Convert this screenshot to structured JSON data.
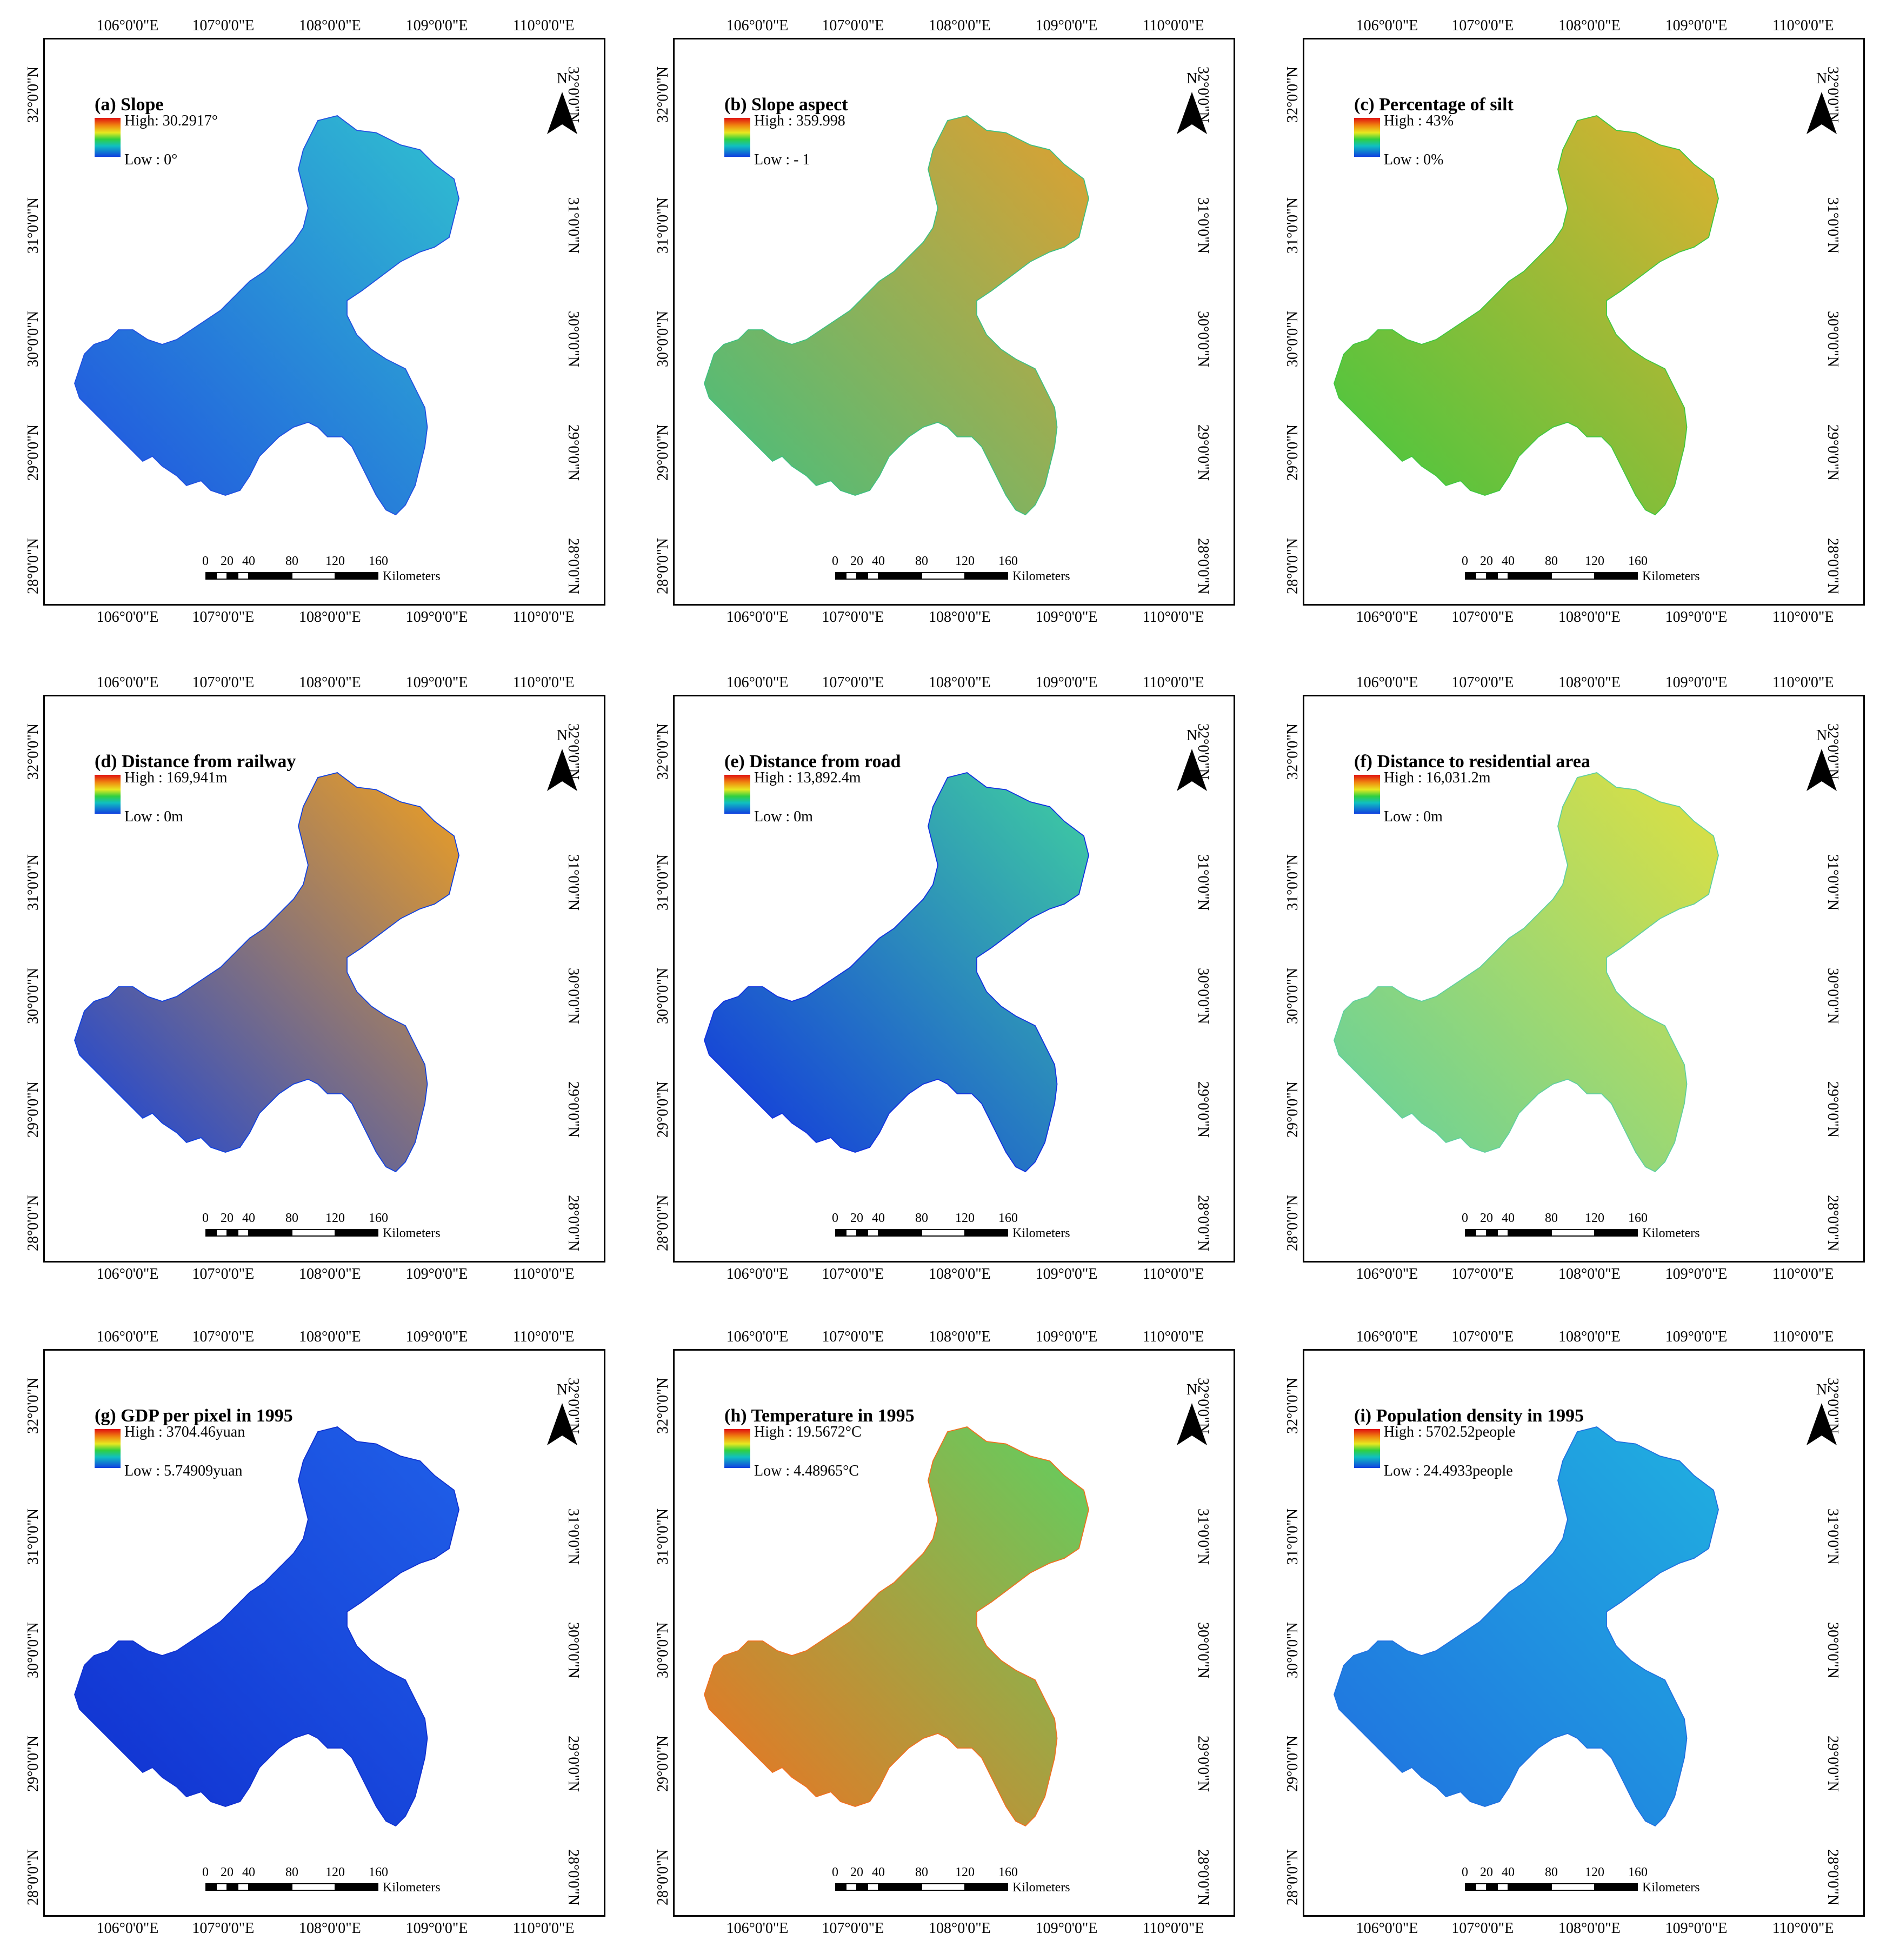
{
  "axes": {
    "lon_labels": [
      "106°0'0\"E",
      "107°0'0\"E",
      "108°0'0\"E",
      "109°0'0\"E",
      "110°0'0\"E"
    ],
    "lat_labels": [
      "32°0'0\"N",
      "31°0'0\"N",
      "30°0'0\"N",
      "29°0'0\"N",
      "28°0'0\"N"
    ]
  },
  "common": {
    "north_letter": "N",
    "scale_numbers": [
      "0",
      "20",
      "40",
      "80",
      "120",
      "160"
    ],
    "scale_unit": "Kilometers"
  },
  "panels": [
    {
      "title": "(a) Slope",
      "high": "High: 30.2917°",
      "low": "Low : 0°",
      "style": "slope"
    },
    {
      "title": "(b) Slope aspect",
      "high": "High : 359.998",
      "low": "Low :  - 1",
      "style": "aspect"
    },
    {
      "title": "(c) Percentage of silt",
      "high": "High : 43%",
      "low": "Low : 0%",
      "style": "silt"
    },
    {
      "title": "(d) Distance from railway",
      "high": "High : 169,941m",
      "low": "Low : 0m",
      "style": "railway"
    },
    {
      "title": "(e) Distance from road",
      "high": "High : 13,892.4m",
      "low": "Low : 0m",
      "style": "road"
    },
    {
      "title": "(f) Distance to residential area",
      "high": "High : 16,031.2m",
      "low": "Low : 0m",
      "style": "residential"
    },
    {
      "title": "(g) GDP per pixel in 1995",
      "high": "High : 3704.46yuan",
      "low": "Low : 5.74909yuan",
      "style": "gdp"
    },
    {
      "title": "(h) Temperature in 1995",
      "high": "High : 19.5672°C",
      "low": "Low : 4.48965°C",
      "style": "temperature"
    },
    {
      "title": "(i) Population density in 1995",
      "high": "High : 5702.52people",
      "low": "Low : 24.4933people",
      "style": "population"
    }
  ],
  "colors": {
    "frame": "#000000",
    "ramp": [
      "#e01010",
      "#f08a10",
      "#e8e820",
      "#30d040",
      "#10c0c0",
      "#1040e0"
    ]
  }
}
